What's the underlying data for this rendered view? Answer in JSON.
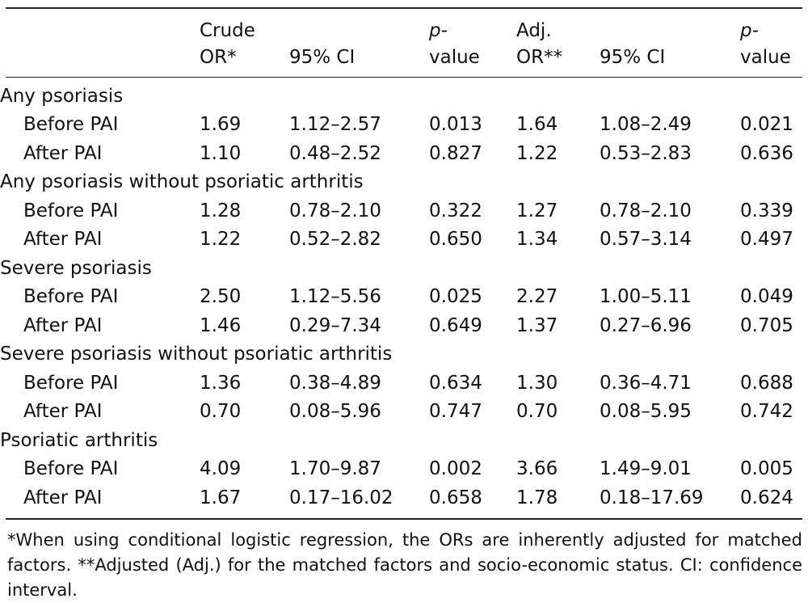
{
  "header": {
    "crude_or": [
      "Crude",
      "OR*"
    ],
    "ci_crude": "95% CI",
    "p_crude": [
      "p-",
      "value"
    ],
    "adj_or": [
      "Adj.",
      "OR**"
    ],
    "ci_adj": "95% CI",
    "p_adj": [
      "p-",
      "value"
    ]
  },
  "groups": [
    {
      "title": "Any psoriasis",
      "rows": [
        {
          "label": "Before PAI",
          "crude_or": "1.69",
          "ci_crude": "1.12–2.57",
          "p_crude": "0.013",
          "adj_or": "1.64",
          "ci_adj": "1.08–2.49",
          "p_adj": "0.021"
        },
        {
          "label": "After PAI",
          "crude_or": "1.10",
          "ci_crude": "0.48–2.52",
          "p_crude": "0.827",
          "adj_or": "1.22",
          "ci_adj": "0.53–2.83",
          "p_adj": "0.636"
        }
      ]
    },
    {
      "title": "Any psoriasis without psoriatic arthritis",
      "rows": [
        {
          "label": "Before PAI",
          "crude_or": "1.28",
          "ci_crude": "0.78–2.10",
          "p_crude": "0.322",
          "adj_or": "1.27",
          "ci_adj": "0.78–2.10",
          "p_adj": "0.339"
        },
        {
          "label": "After PAI",
          "crude_or": "1.22",
          "ci_crude": "0.52–2.82",
          "p_crude": "0.650",
          "adj_or": "1.34",
          "ci_adj": "0.57–3.14",
          "p_adj": "0.497"
        }
      ]
    },
    {
      "title": "Severe psoriasis",
      "rows": [
        {
          "label": "Before PAI",
          "crude_or": "2.50",
          "ci_crude": "1.12–5.56",
          "p_crude": "0.025",
          "adj_or": "2.27",
          "ci_adj": "1.00–5.11",
          "p_adj": "0.049"
        },
        {
          "label": "After PAI",
          "crude_or": "1.46",
          "ci_crude": "0.29–7.34",
          "p_crude": "0.649",
          "adj_or": "1.37",
          "ci_adj": "0.27–6.96",
          "p_adj": "0.705"
        }
      ]
    },
    {
      "title": "Severe psoriasis without psoriatic arthritis",
      "rows": [
        {
          "label": "Before PAI",
          "crude_or": "1.36",
          "ci_crude": "0.38–4.89",
          "p_crude": "0.634",
          "adj_or": "1.30",
          "ci_adj": "0.36–4.71",
          "p_adj": "0.688"
        },
        {
          "label": "After PAI",
          "crude_or": "0.70",
          "ci_crude": "0.08–5.96",
          "p_crude": "0.747",
          "adj_or": "0.70",
          "ci_adj": "0.08–5.95",
          "p_adj": "0.742"
        }
      ]
    },
    {
      "title": "Psoriatic arthritis",
      "rows": [
        {
          "label": "Before PAI",
          "crude_or": "4.09",
          "ci_crude": "1.70–9.87",
          "p_crude": "0.002",
          "adj_or": "3.66",
          "ci_adj": "1.49–9.01",
          "p_adj": "0.005"
        },
        {
          "label": "After PAI",
          "crude_or": "1.67",
          "ci_crude": "0.17–16.02",
          "p_crude": "0.658",
          "adj_or": "1.78",
          "ci_adj": "0.18–17.69",
          "p_adj": "0.624"
        }
      ]
    }
  ],
  "footnote": "*When using conditional logistic regression, the ORs are inherently adjusted for matched factors. **Adjusted (Adj.) for the matched factors and socio-economic status. CI: confidence interval."
}
